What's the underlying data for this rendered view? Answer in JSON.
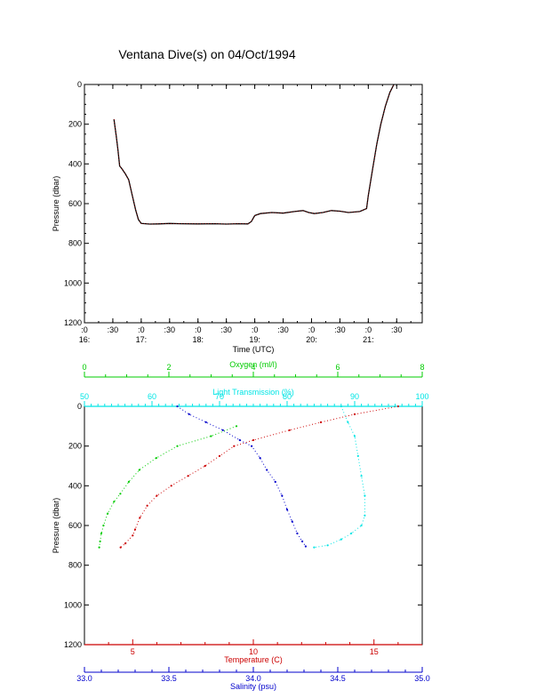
{
  "page_title": "Ventana Dive(s) on 04/Oct/1994",
  "chart_data": [
    {
      "type": "line",
      "xlabel": "Time (UTC)",
      "ylabel": "Pressure (dbar)",
      "ylim": [
        1200,
        0
      ],
      "yticks": [
        0,
        200,
        400,
        600,
        800,
        1000,
        1200
      ],
      "xlim_hours": [
        16.0,
        21.95
      ],
      "xtick_labels_top": [
        ":0",
        ":30",
        ":0",
        ":30",
        ":0",
        ":30",
        ":0",
        ":30",
        ":0",
        ":30",
        ":0",
        ":30"
      ],
      "xtick_labels_bottom": [
        "16:",
        "17:",
        "18:",
        "19:",
        "20:",
        "21:"
      ],
      "colors": {
        "trace": "#000000",
        "trace_overlay": "#cc0000"
      },
      "series": [
        {
          "points": [
            [
              16.52,
              175
            ],
            [
              16.56,
              260
            ],
            [
              16.59,
              330
            ],
            [
              16.62,
              410
            ],
            [
              16.66,
              425
            ],
            [
              16.72,
              450
            ],
            [
              16.78,
              480
            ],
            [
              16.84,
              555
            ],
            [
              16.9,
              630
            ],
            [
              16.95,
              680
            ],
            [
              17.0,
              700
            ],
            [
              17.15,
              703
            ],
            [
              17.3,
              702
            ],
            [
              17.5,
              700
            ],
            [
              17.7,
              701
            ],
            [
              18.0,
              702
            ],
            [
              18.3,
              701
            ],
            [
              18.5,
              703
            ],
            [
              18.7,
              701
            ],
            [
              18.88,
              702
            ],
            [
              18.94,
              690
            ],
            [
              19.0,
              660
            ],
            [
              19.1,
              650
            ],
            [
              19.3,
              645
            ],
            [
              19.5,
              648
            ],
            [
              19.7,
              640
            ],
            [
              19.85,
              635
            ],
            [
              19.95,
              645
            ],
            [
              20.05,
              650
            ],
            [
              20.2,
              645
            ],
            [
              20.35,
              635
            ],
            [
              20.5,
              638
            ],
            [
              20.65,
              645
            ],
            [
              20.85,
              640
            ],
            [
              20.97,
              625
            ],
            [
              21.0,
              560
            ],
            [
              21.08,
              420
            ],
            [
              21.15,
              300
            ],
            [
              21.22,
              200
            ],
            [
              21.3,
              110
            ],
            [
              21.38,
              40
            ],
            [
              21.45,
              0
            ]
          ]
        }
      ]
    },
    {
      "type": "scatter",
      "ylabel": "Pressure (dbar)",
      "ylim": [
        1200,
        0
      ],
      "yticks": [
        0,
        200,
        400,
        600,
        800,
        1000,
        1200
      ],
      "axes": {
        "oxygen": {
          "label": "Oxygen (ml/l)",
          "range": [
            0,
            8
          ],
          "ticks": [
            0,
            2,
            4,
            6,
            8
          ],
          "color": "#00cc00"
        },
        "transmission": {
          "label": "Light Transmission (%)",
          "range": [
            50,
            100
          ],
          "ticks": [
            50,
            60,
            70,
            80,
            90,
            100
          ],
          "color": "#00e5e5"
        },
        "temperature": {
          "label": "Temperature (C)",
          "range": [
            3,
            17
          ],
          "ticks": [
            5,
            10,
            15
          ],
          "color": "#cc0000"
        },
        "salinity": {
          "label": "Salinity (psu)",
          "range": [
            33.0,
            35.0
          ],
          "ticks": [
            "33.0",
            "33.5",
            "34.0",
            "34.5",
            "35.0"
          ],
          "color": "#0000cc"
        }
      },
      "series": [
        {
          "axis": "temperature",
          "color": "#cc0000",
          "points": [
            [
              16.0,
              0
            ],
            [
              14.2,
              40
            ],
            [
              12.8,
              80
            ],
            [
              11.5,
              120
            ],
            [
              10.0,
              170
            ],
            [
              9.2,
              200
            ],
            [
              8.6,
              250
            ],
            [
              8.0,
              300
            ],
            [
              7.3,
              350
            ],
            [
              6.6,
              400
            ],
            [
              6.0,
              450
            ],
            [
              5.6,
              500
            ],
            [
              5.3,
              560
            ],
            [
              5.1,
              620
            ],
            [
              5.0,
              650
            ],
            [
              4.7,
              690
            ],
            [
              4.5,
              710
            ]
          ]
        },
        {
          "axis": "salinity",
          "color": "#0000cc",
          "points": [
            [
              33.55,
              0
            ],
            [
              33.62,
              40
            ],
            [
              33.72,
              80
            ],
            [
              33.82,
              120
            ],
            [
              33.92,
              170
            ],
            [
              33.99,
              200
            ],
            [
              34.04,
              260
            ],
            [
              34.08,
              320
            ],
            [
              34.13,
              380
            ],
            [
              34.17,
              450
            ],
            [
              34.2,
              520
            ],
            [
              34.23,
              580
            ],
            [
              34.26,
              640
            ],
            [
              34.29,
              680
            ],
            [
              34.31,
              705
            ]
          ]
        },
        {
          "axis": "oxygen",
          "color": "#00cc00",
          "points": [
            [
              3.6,
              100
            ],
            [
              3.0,
              150
            ],
            [
              2.2,
              200
            ],
            [
              1.7,
              260
            ],
            [
              1.3,
              320
            ],
            [
              1.05,
              380
            ],
            [
              0.85,
              440
            ],
            [
              0.7,
              480
            ],
            [
              0.55,
              540
            ],
            [
              0.45,
              600
            ],
            [
              0.4,
              640
            ],
            [
              0.37,
              680
            ],
            [
              0.35,
              710
            ]
          ]
        },
        {
          "axis": "transmission",
          "color": "#00e5e5",
          "points": [
            [
              88,
              0
            ],
            [
              89,
              80
            ],
            [
              90,
              150
            ],
            [
              90.5,
              250
            ],
            [
              91,
              350
            ],
            [
              91.5,
              450
            ],
            [
              91.5,
              550
            ],
            [
              91,
              600
            ],
            [
              89.5,
              640
            ],
            [
              88,
              670
            ],
            [
              86,
              700
            ],
            [
              84,
              710
            ]
          ]
        }
      ]
    }
  ]
}
